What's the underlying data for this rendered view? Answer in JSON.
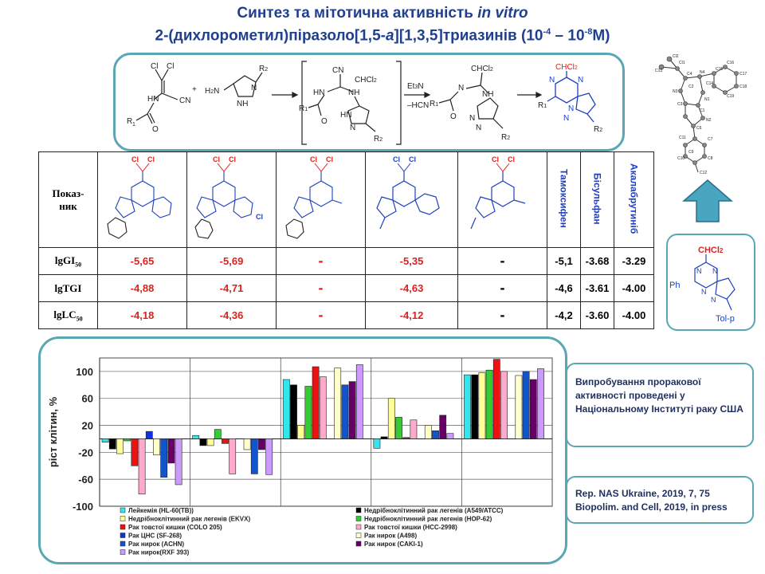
{
  "title": {
    "line1_pre": "Синтез та мітотична активність ",
    "line1_em": "in vitro",
    "line2_pre": "2-(дихлорометил)піразоло[1,5-",
    "line2_em": "a",
    "line2_post": "][1,3,5]триазинів (10",
    "exp1": "-4",
    "dash": " – 10",
    "exp2": "-8",
    "line2_end": "M)"
  },
  "scheme": {
    "reagent1_labels": [
      "Cl",
      "Cl",
      "HN",
      "CN",
      "R",
      "1",
      "O"
    ],
    "reagent2_labels": [
      "H",
      "2",
      "N",
      "R",
      "2",
      "N",
      "NH"
    ],
    "plus": "+",
    "intermediate_labels": [
      "CN",
      "CHCl",
      "2",
      "HN",
      "NH",
      "R",
      "1",
      "O",
      "HN",
      "N",
      "R",
      "2"
    ],
    "conditions_top": "Et",
    "conditions_top_sub": "3",
    "conditions_top_post": "N",
    "conditions_bottom": "–HCN",
    "product1_labels": [
      "CHCl",
      "2",
      "N",
      "NH",
      "R",
      "1",
      "O",
      "N",
      "N",
      "R",
      "2"
    ],
    "product2_labels": [
      "CHCl",
      "2",
      "N",
      "N",
      "R",
      "1",
      "N",
      "N",
      "R",
      "2"
    ]
  },
  "xray_labels": [
    "Cl2",
    "Cl1",
    "C13",
    "C4",
    "N4",
    "C15",
    "C16",
    "C17",
    "C14",
    "C18",
    "C19",
    "N3",
    "C2",
    "N1",
    "C3",
    "C1",
    "N2",
    "C11",
    "C6",
    "C7",
    "C10",
    "C8",
    "C9",
    "C12"
  ],
  "table": {
    "row_header": "Показ-\nник",
    "compound_labels": {
      "cl": "Cl",
      "n": "N"
    },
    "reference_drugs": [
      "Тамоксифен",
      "Бісульфан",
      "Акалабрутиніб"
    ],
    "rows": [
      {
        "label": "lgGI",
        "sub": "50",
        "values": [
          "-5,65",
          "-5,69",
          "-",
          "-5,35",
          "-",
          "-5,1",
          "-3.68",
          "-3.29"
        ]
      },
      {
        "label": "lgTGI",
        "sub": "",
        "values": [
          "-4,88",
          "-4,71",
          "-",
          "-4,63",
          "-",
          "-4,6",
          "-3.61",
          "-4.00"
        ]
      },
      {
        "label": "lgLC",
        "sub": "50",
        "values": [
          "-4,18",
          "-4,36",
          "-",
          "-4,12",
          "-",
          "-4,2",
          "-3.60",
          "-4.00"
        ]
      }
    ]
  },
  "ph_struct": {
    "top": "CHCl",
    "top_sub": "2",
    "ph": "Ph",
    "tol": "Tol-p",
    "n": "N"
  },
  "side_notes": {
    "note1": "Випробування проракової активності проведені у Національному Інституті раку США",
    "note2_line1": "Rep. NAS Ukraine, 2019,  7, 75",
    "note2_line2": "Biopolim. and Cell, 2019,  in press"
  },
  "colors": {
    "title": "#1f3f8f",
    "border": "#5aa7b4",
    "red": "#e0201c",
    "blue": "#1f3fbf",
    "arrow": "#4aa6c0"
  },
  "chart_data": {
    "type": "bar",
    "ylabel": "ріст клітин, %",
    "ylim": [
      -100,
      120
    ],
    "yticks": [
      100,
      60,
      20,
      -20,
      -60,
      -100
    ],
    "grid": true,
    "legend_position": "bottom",
    "groups": 5,
    "series": [
      {
        "name": "Лейкемія (HL-60(TB))",
        "color": "#33e6ee",
        "values": [
          -5,
          5,
          88,
          -14,
          95
        ]
      },
      {
        "name": "Недрібноклітинний рак легенів (A549/ATCC)",
        "color": "#000000",
        "values": [
          -15,
          -10,
          80,
          3,
          95
        ]
      },
      {
        "name": "Недрібноклітинний рак легенів (EKVX)",
        "color": "#ffff99",
        "values": [
          -22,
          -10,
          20,
          60,
          98
        ]
      },
      {
        "name": "Недрібноклітинний рак легенів (HOP-62)",
        "color": "#33cc33",
        "values": [
          -3,
          14,
          78,
          32,
          102
        ]
      },
      {
        "name": "Рак товстої кишки (COLO 205)",
        "color": "#ee1111",
        "values": [
          -40,
          -7,
          107,
          2,
          118
        ]
      },
      {
        "name": "Рак товстої кишки (HCC-2998)",
        "color": "#ffaacc",
        "values": [
          -82,
          -52,
          92,
          28,
          100
        ]
      },
      {
        "name": "Рак ЦНС (SF-268)",
        "color": "#1133dd",
        "values": [
          11,
          null,
          null,
          null,
          null
        ]
      },
      {
        "name": "Рак нирок (A498)",
        "color": "#ffffcc",
        "values": [
          -24,
          -16,
          105,
          20,
          94
        ]
      },
      {
        "name": "Рак нирок (ACHN)",
        "color": "#1155cc",
        "values": [
          -57,
          -52,
          80,
          12,
          100
        ]
      },
      {
        "name": "Рак нирок (CAKI-1)",
        "color": "#660066",
        "values": [
          -36,
          -16,
          85,
          35,
          88
        ]
      },
      {
        "name": "Рак нирок(RXF 393)",
        "color": "#cc99ff",
        "values": [
          -68,
          -53,
          110,
          8,
          104
        ]
      }
    ]
  }
}
